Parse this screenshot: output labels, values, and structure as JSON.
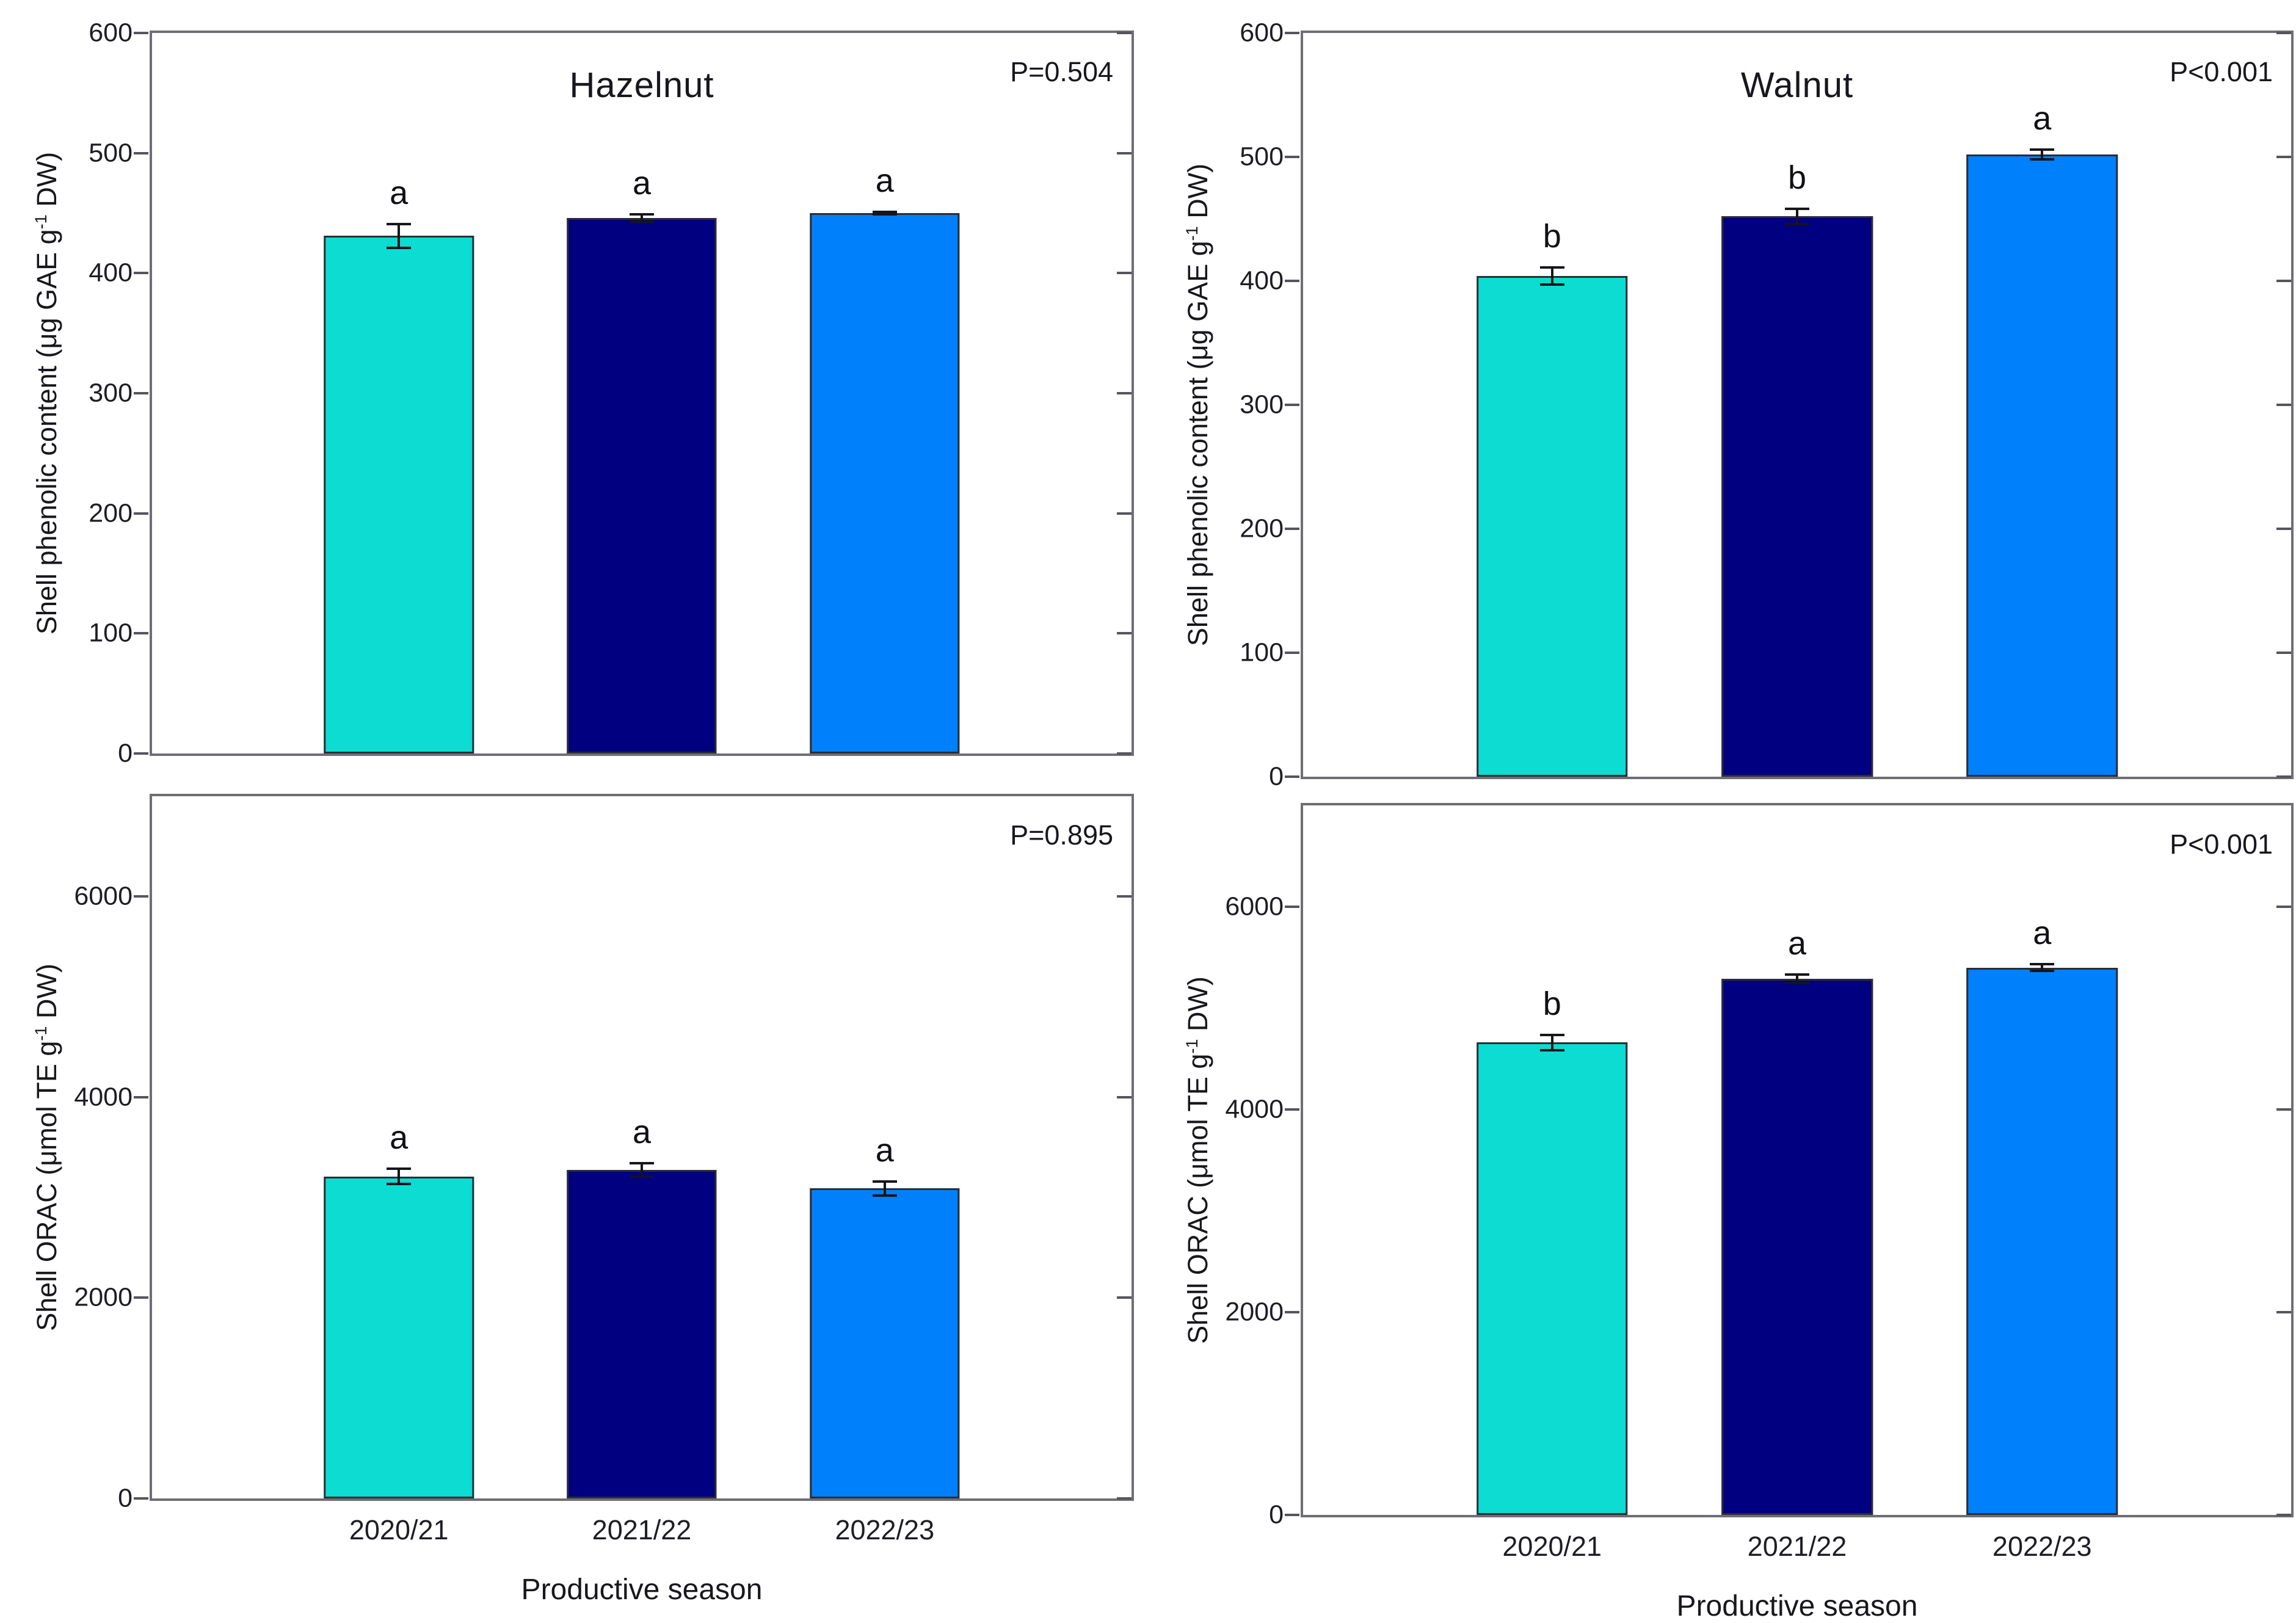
{
  "figure": {
    "background_color": "#ffffff",
    "frame_color": "#6e6e76",
    "x_axis_title": "Productive season",
    "categories": [
      "2020/21",
      "2021/22",
      "2022/23"
    ],
    "season_colors": [
      "#0cdcd2",
      "#000080",
      "#0080fb"
    ]
  },
  "chart_data": [
    {
      "type": "bar",
      "panel": "top-left",
      "title": "Hazelnut",
      "p_label": "P=0.504",
      "ylabel": {
        "before": "Shell phenolic content (μg GAE g",
        "sup": "-1",
        "after": " DW)"
      },
      "ylim": [
        0,
        600
      ],
      "yticks": [
        0,
        100,
        200,
        300,
        400,
        500,
        600
      ],
      "categories": [
        "2020/21",
        "2021/22",
        "2022/23"
      ],
      "values": [
        431,
        446,
        450
      ],
      "errors": [
        11,
        4,
        2
      ],
      "sig_letters": [
        "a",
        "a",
        "a"
      ],
      "bar_colors": [
        "#0cdcd2",
        "#000080",
        "#0080fb"
      ],
      "show_x_tick_labels": false,
      "grid": false,
      "legend": false
    },
    {
      "type": "bar",
      "panel": "top-right",
      "title": "Walnut",
      "p_label": "P<0.001",
      "ylabel": {
        "before": "Shell phenolic content (μg GAE g",
        "sup": "-1",
        "after": " DW)"
      },
      "ylim": [
        0,
        600
      ],
      "yticks": [
        0,
        100,
        200,
        300,
        400,
        500,
        600
      ],
      "categories": [
        "2020/21",
        "2021/22",
        "2022/23"
      ],
      "values": [
        404,
        452,
        502
      ],
      "errors": [
        8,
        7,
        5
      ],
      "sig_letters": [
        "b",
        "b",
        "a"
      ],
      "bar_colors": [
        "#0cdcd2",
        "#000080",
        "#0080fb"
      ],
      "show_x_tick_labels": false,
      "grid": false,
      "legend": false
    },
    {
      "type": "bar",
      "panel": "bottom-left",
      "title": "",
      "p_label": "P=0.895",
      "ylabel": {
        "before": "Shell ORAC (μmol TE g",
        "sup": "-1",
        "after": " DW)"
      },
      "ylim": [
        0,
        7000
      ],
      "yticks": [
        0,
        2000,
        4000,
        6000
      ],
      "categories": [
        "2020/21",
        "2021/22",
        "2022/23"
      ],
      "values": [
        3210,
        3275,
        3090
      ],
      "errors": [
        90,
        80,
        80
      ],
      "sig_letters": [
        "a",
        "a",
        "a"
      ],
      "bar_colors": [
        "#0cdcd2",
        "#000080",
        "#0080fb"
      ],
      "show_x_tick_labels": true,
      "grid": false,
      "legend": false
    },
    {
      "type": "bar",
      "panel": "bottom-right",
      "title": "",
      "p_label": "P<0.001",
      "ylabel": {
        "before": "Shell ORAC (μmol TE g",
        "sup": "-1",
        "after": " DW)"
      },
      "ylim": [
        0,
        7000
      ],
      "yticks": [
        0,
        2000,
        4000,
        6000
      ],
      "categories": [
        "2020/21",
        "2021/22",
        "2022/23"
      ],
      "values": [
        4660,
        5290,
        5400
      ],
      "errors": [
        90,
        55,
        45
      ],
      "sig_letters": [
        "b",
        "a",
        "a"
      ],
      "bar_colors": [
        "#0cdcd2",
        "#000080",
        "#0080fb"
      ],
      "show_x_tick_labels": true,
      "grid": false,
      "legend": false
    }
  ]
}
